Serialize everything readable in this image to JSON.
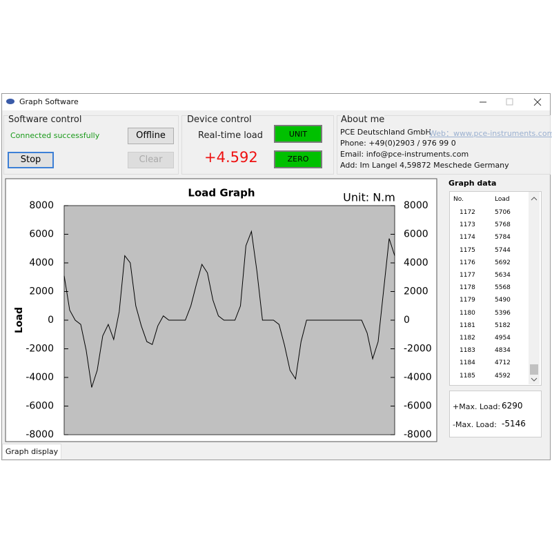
{
  "window": {
    "title": "Graph Software"
  },
  "software_control": {
    "title": "Software control",
    "status": "Connected successfully",
    "offline": "Offline",
    "stop": "Stop",
    "clear": "Clear"
  },
  "device_control": {
    "title": "Device control",
    "realtime_label": "Real-time load",
    "realtime_value": "+4.592",
    "unit_button": "UNIT",
    "zero_button": "ZERO"
  },
  "about": {
    "title": "About me",
    "company": "PCE Deutschland GmbH",
    "web": "Web：www.pce-instruments.com",
    "phone": "Phone: +49(0)2903 / 976 99 0",
    "email": "Email: info@pce-instruments.com",
    "address": "Add: Im Langel 4,59872 Meschede Germany"
  },
  "chart_data": {
    "type": "line",
    "title": "Load Graph",
    "unit_label": "Unit:  N.m",
    "y_label": "Load",
    "ylim": [
      -8000,
      8000
    ],
    "yticks": [
      -8000,
      -6000,
      -4000,
      -2000,
      0,
      2000,
      4000,
      6000,
      8000
    ],
    "background": "#c0c0c0",
    "series": [
      {
        "color": "#000000",
        "values": [
          3100,
          700,
          0,
          -300,
          -2100,
          -4700,
          -3500,
          -1100,
          -300,
          -1350,
          600,
          4500,
          4000,
          1000,
          -400,
          -1500,
          -1700,
          -400,
          300,
          0,
          0,
          0,
          0,
          1000,
          2500,
          3900,
          3300,
          1400,
          300,
          0,
          0,
          0,
          1000,
          5200,
          6200,
          3400,
          0,
          0,
          0,
          -300,
          -1750,
          -3500,
          -4100,
          -1500,
          0,
          0,
          0,
          0,
          0,
          0,
          0,
          0,
          0,
          0,
          0,
          -900,
          -2700,
          -1500,
          2100,
          5700,
          4500
        ]
      }
    ]
  },
  "graph_data": {
    "title": "Graph data",
    "columns": [
      "No.",
      "Load"
    ],
    "rows": [
      [
        1172,
        5706
      ],
      [
        1173,
        5768
      ],
      [
        1174,
        5784
      ],
      [
        1175,
        5744
      ],
      [
        1176,
        5692
      ],
      [
        1177,
        5634
      ],
      [
        1178,
        5568
      ],
      [
        1179,
        5490
      ],
      [
        1180,
        5396
      ],
      [
        1181,
        5182
      ],
      [
        1182,
        4954
      ],
      [
        1183,
        4834
      ],
      [
        1184,
        4712
      ],
      [
        1185,
        4592
      ]
    ]
  },
  "max": {
    "plus_label": "+Max. Load:",
    "plus_value": 6290,
    "minus_label": "-Max. Load:",
    "minus_value": -5146
  },
  "tabs": [
    "Graph display"
  ]
}
